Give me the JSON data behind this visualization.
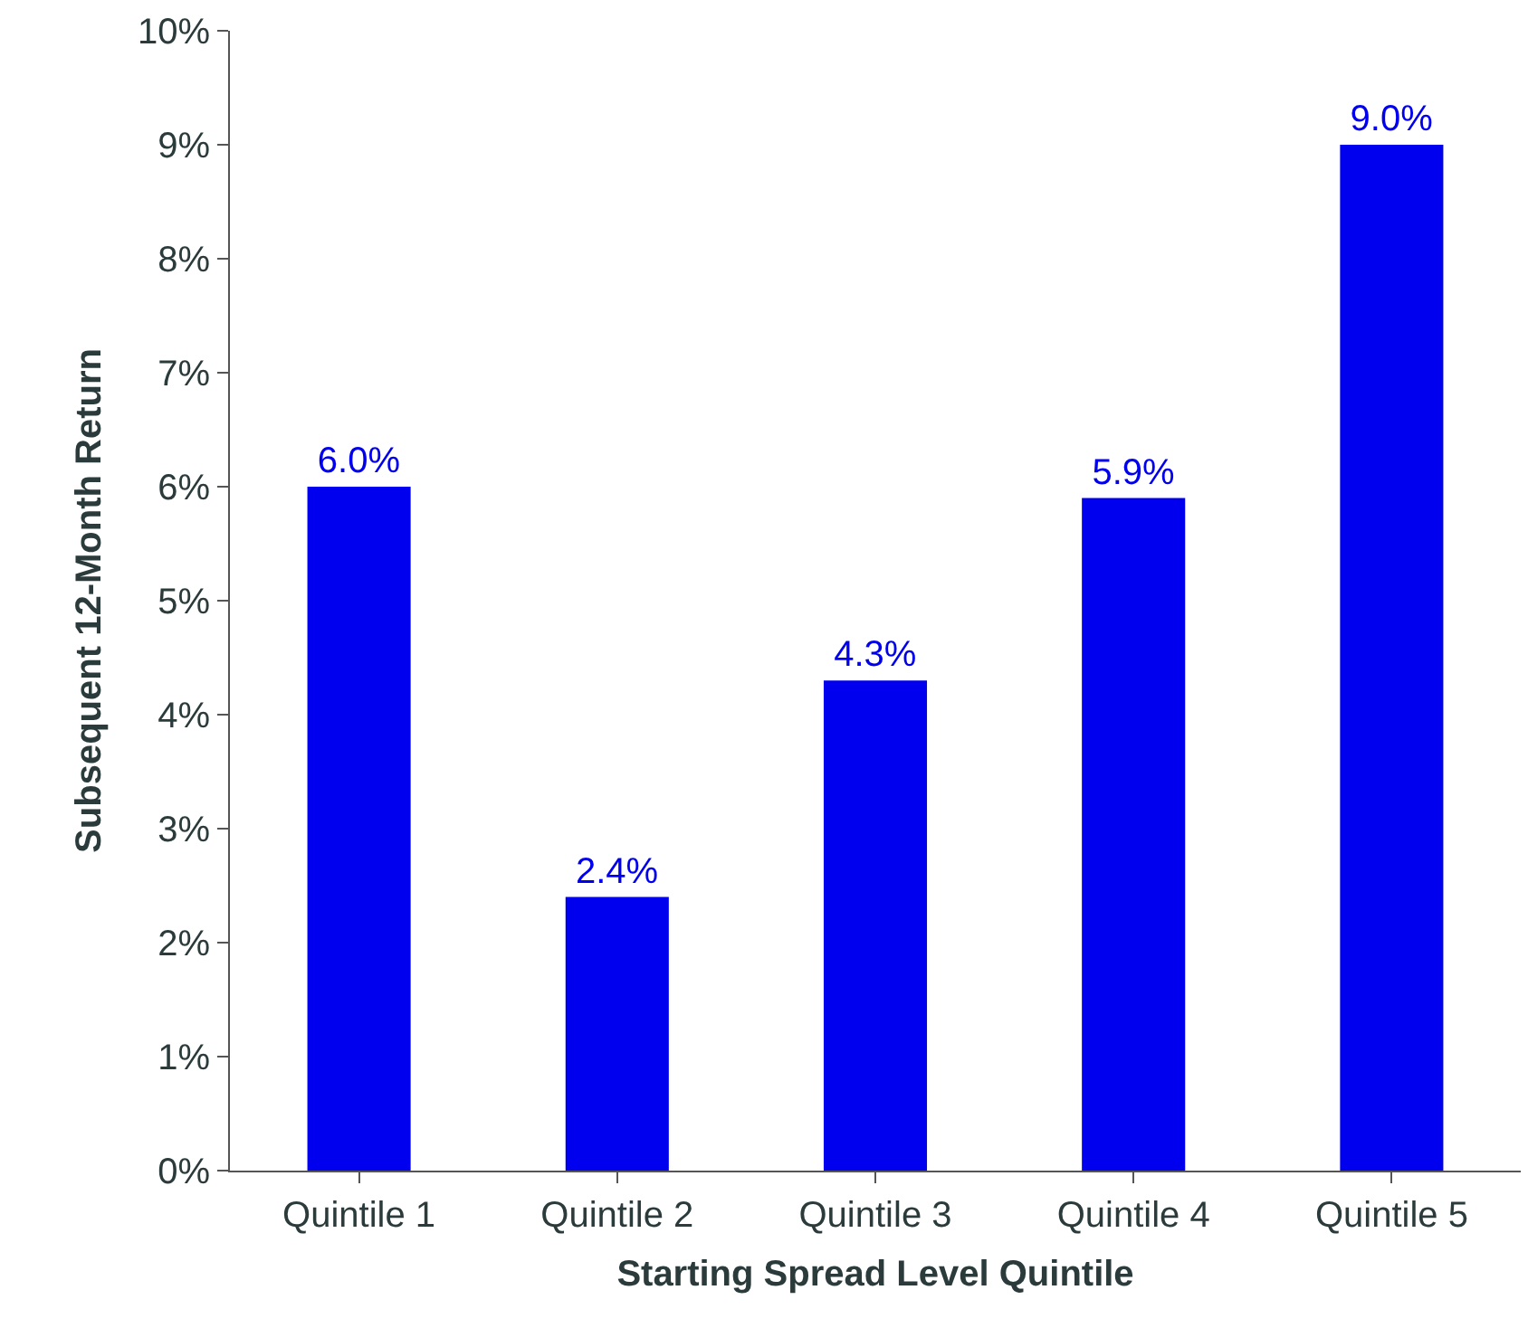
{
  "chart_data": {
    "type": "bar",
    "xlabel": "Starting Spread Level Quintile",
    "ylabel": "Subsequent 12-Month Return",
    "categories": [
      "Quintile 1",
      "Quintile 2",
      "Quintile 3",
      "Quintile 4",
      "Quintile 5"
    ],
    "values": [
      6.0,
      2.4,
      4.3,
      5.9,
      9.0
    ],
    "value_labels": [
      "6.0%",
      "2.4%",
      "4.3%",
      "5.9%",
      "9.0%"
    ],
    "color": "#0000ee",
    "ylim": [
      0,
      10
    ],
    "yticks": [
      {
        "value": 0,
        "label": "0%"
      },
      {
        "value": 1,
        "label": "1%"
      },
      {
        "value": 2,
        "label": "2%"
      },
      {
        "value": 3,
        "label": "3%"
      },
      {
        "value": 4,
        "label": "4%"
      },
      {
        "value": 5,
        "label": "5%"
      },
      {
        "value": 6,
        "label": "6%"
      },
      {
        "value": 7,
        "label": "7%"
      },
      {
        "value": 8,
        "label": "8%"
      },
      {
        "value": 9,
        "label": "9%"
      },
      {
        "value": 10,
        "label": "10%"
      }
    ],
    "grid": false,
    "legend": false
  }
}
